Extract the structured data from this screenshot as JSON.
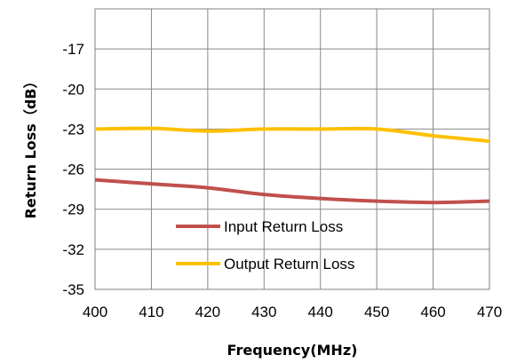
{
  "chart_data": {
    "type": "line",
    "xlabel": "Frequency(MHz)",
    "ylabel": "Return Loss（dB）",
    "xlim": [
      400,
      470
    ],
    "ylim": [
      -35,
      -14
    ],
    "x_ticks": [
      400,
      410,
      420,
      430,
      440,
      450,
      460,
      470
    ],
    "y_ticks": [
      -35,
      -32,
      -29,
      -26,
      -23,
      -20,
      -17
    ],
    "grid": true,
    "legend_position": "bottom-center",
    "series": [
      {
        "name": "Input Return Loss",
        "color": "#C0504D",
        "x": [
          400,
          410,
          420,
          430,
          440,
          450,
          460,
          470
        ],
        "values": [
          -26.8,
          -27.1,
          -27.4,
          -27.9,
          -28.2,
          -28.4,
          -28.5,
          -28.4
        ]
      },
      {
        "name": "Output Return Loss",
        "color": "#FFC000",
        "x": [
          400,
          410,
          420,
          430,
          440,
          450,
          460,
          470
        ],
        "values": [
          -23.0,
          -22.95,
          -23.15,
          -23.0,
          -23.0,
          -23.0,
          -23.5,
          -23.9
        ]
      }
    ]
  }
}
